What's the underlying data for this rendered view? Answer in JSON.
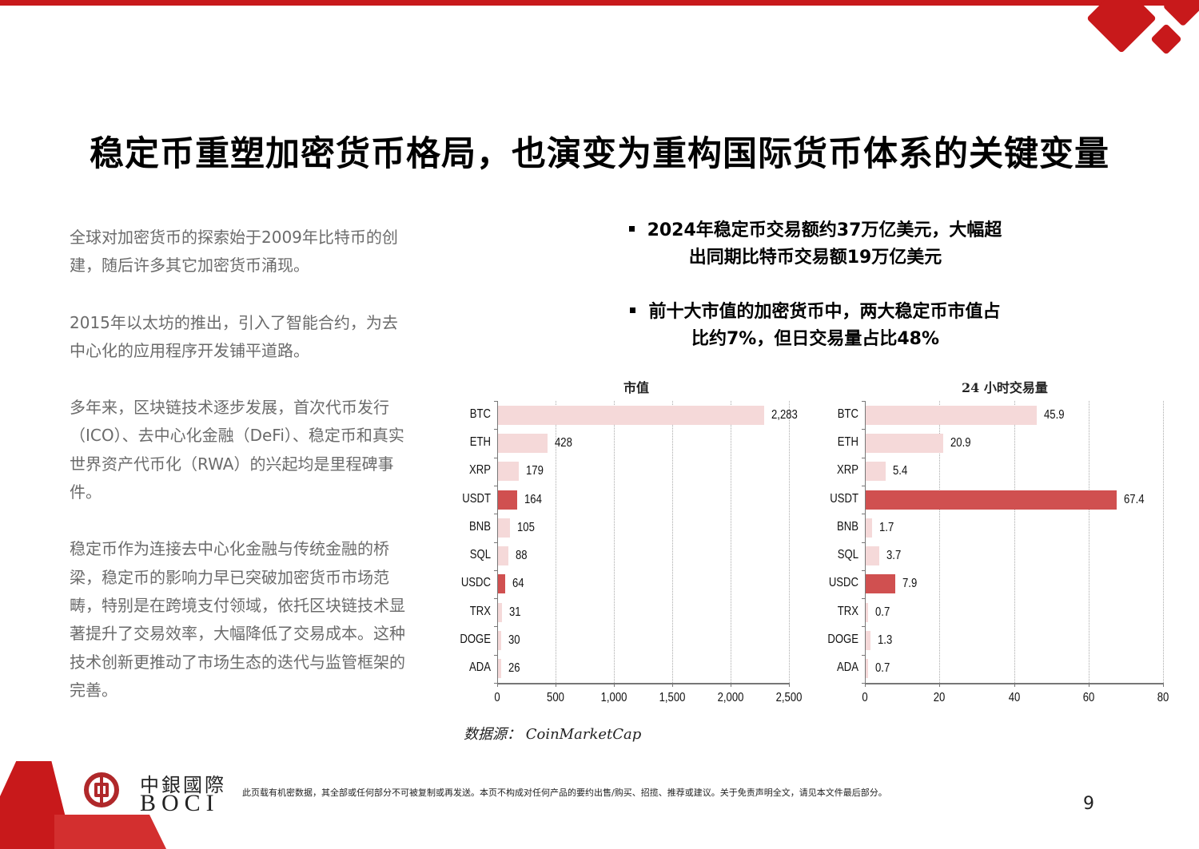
{
  "header": {
    "title": "稳定币重塑加密货币格局，也演变为重构国际货币体系的关键变量"
  },
  "left_text": {
    "paragraphs": [
      "全球对加密货币的探索始于2009年比特币的创建，随后许多其它加密货币涌现。",
      "2015年以太坊的推出，引入了智能合约，为去中心化的应用程序开发铺平道路。",
      "多年来，区块链技术逐步发展，首次代币发行（ICO）、去中心化金融（DeFi）、稳定币和真实世界资产代币化（RWA）的兴起均是里程碑事件。",
      "稳定币作为连接去中心化金融与传统金融的桥梁，稳定币的影响力早已突破加密货币市场范畴，特别是在跨境支付领域，依托区块链技术显著提升了交易效率，大幅降低了交易成本。这种技术创新更推动了市场生态的迭代与监管框架的完善。"
    ]
  },
  "bullets": [
    {
      "line1": "2024年稳定币交易额约37万亿美元，大幅超",
      "line2": "出同期比特币交易额19万亿美元"
    },
    {
      "line1": "前十大市值的加密货币中，两大稳定币市值占",
      "line2": "比约7%，但日交易量占比48%"
    }
  ],
  "colors": {
    "brand_red": "#c8191b",
    "bar_light": "#f5d9d9",
    "bar_highlight": "#d05050"
  },
  "chart_data": [
    {
      "type": "bar",
      "orientation": "horizontal",
      "title": "市值",
      "categories": [
        "BTC",
        "ETH",
        "XRP",
        "USDT",
        "BNB",
        "SQL",
        "USDC",
        "TRX",
        "DOGE",
        "ADA"
      ],
      "values": [
        2283,
        428,
        179,
        164,
        105,
        88,
        64,
        31,
        30,
        26
      ],
      "value_labels": [
        "2,283",
        "428",
        "179",
        "164",
        "105",
        "88",
        "64",
        "31",
        "30",
        "26"
      ],
      "highlighted": [
        "USDT",
        "USDC"
      ],
      "xlim": [
        0,
        2500
      ],
      "xticks": [
        "0",
        "500",
        "1,000",
        "1,500",
        "2,000",
        "2,500"
      ],
      "grid": true,
      "xlabel": "",
      "ylabel": ""
    },
    {
      "type": "bar",
      "orientation": "horizontal",
      "title": "24 小时交易量",
      "categories": [
        "BTC",
        "ETH",
        "XRP",
        "USDT",
        "BNB",
        "SQL",
        "USDC",
        "TRX",
        "DOGE",
        "ADA"
      ],
      "values": [
        45.9,
        20.9,
        5.4,
        67.4,
        1.7,
        3.7,
        7.9,
        0.7,
        1.3,
        0.7
      ],
      "value_labels": [
        "45.9",
        "20.9",
        "5.4",
        "67.4",
        "1.7",
        "3.7",
        "7.9",
        "0.7",
        "1.3",
        "0.7"
      ],
      "highlighted": [
        "USDT",
        "USDC"
      ],
      "xlim": [
        0,
        80
      ],
      "xticks": [
        "0",
        "20",
        "40",
        "60",
        "80"
      ],
      "grid": true,
      "xlabel": "",
      "ylabel": ""
    }
  ],
  "source": "数据源：  CoinMarketCap",
  "footer": {
    "logo_cn": "中銀國際",
    "logo_en": "BOCI",
    "disclaimer": "此页载有机密数据，其全部或任何部分不可被复制或再发送。本页不构成对任何产品的要约出售/购买、招揽、推荐或建议。关于免责声明全文，请见本文件最后部分。",
    "page_number": "9"
  }
}
